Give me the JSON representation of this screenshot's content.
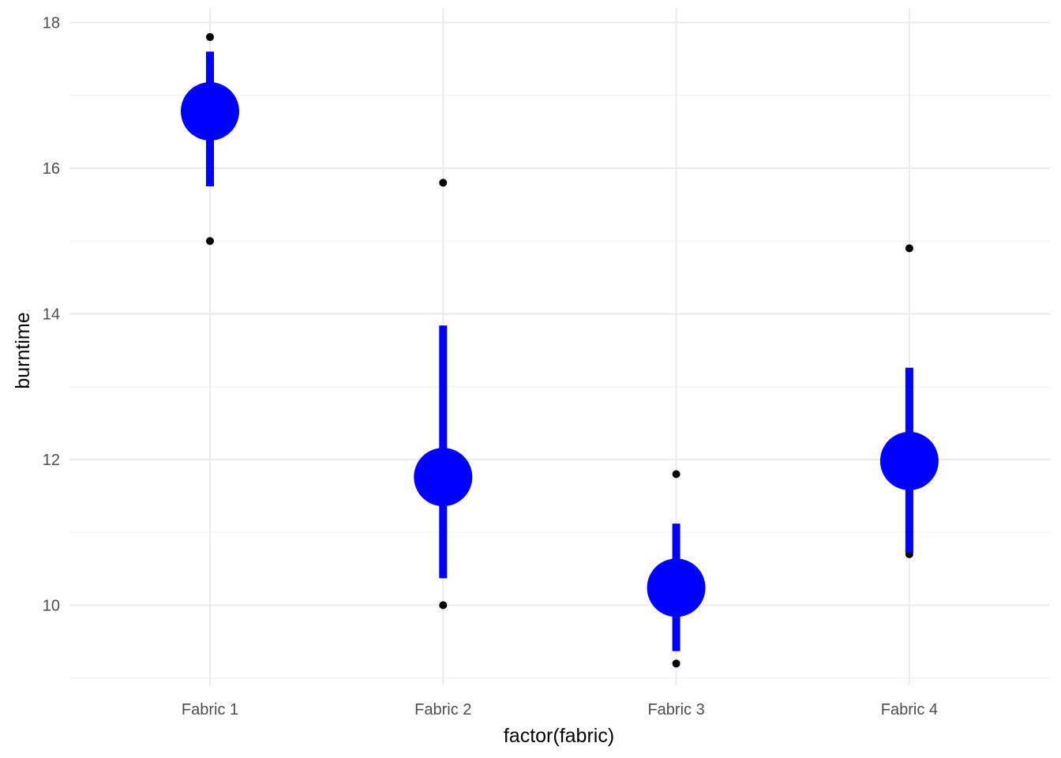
{
  "chart_data": {
    "type": "scatter",
    "xlabel": "factor(fabric)",
    "ylabel": "burntime",
    "categories": [
      "Fabric 1",
      "Fabric 2",
      "Fabric 3",
      "Fabric 4"
    ],
    "ylim": [
      8.9,
      18.2
    ],
    "yticks": [
      10,
      12,
      14,
      16,
      18
    ],
    "ytick_labels": [
      "10",
      "12",
      "14",
      "16",
      "18"
    ],
    "grid": true,
    "colors": {
      "summary": "#0000FF",
      "points": "#000000"
    },
    "observations": [
      {
        "category": "Fabric 1",
        "y": [
          17.8,
          15.0
        ]
      },
      {
        "category": "Fabric 2",
        "y": [
          15.8,
          10.0
        ]
      },
      {
        "category": "Fabric 3",
        "y": [
          11.8,
          9.2
        ]
      },
      {
        "category": "Fabric 4",
        "y": [
          14.9,
          10.7
        ]
      }
    ],
    "summary": [
      {
        "category": "Fabric 1",
        "mean": 16.78,
        "lower": 15.75,
        "upper": 17.6
      },
      {
        "category": "Fabric 2",
        "mean": 11.76,
        "lower": 10.37,
        "upper": 13.84
      },
      {
        "category": "Fabric 3",
        "mean": 10.24,
        "lower": 9.37,
        "upper": 11.12
      },
      {
        "category": "Fabric 4",
        "mean": 11.98,
        "lower": 10.72,
        "upper": 13.26
      }
    ]
  }
}
